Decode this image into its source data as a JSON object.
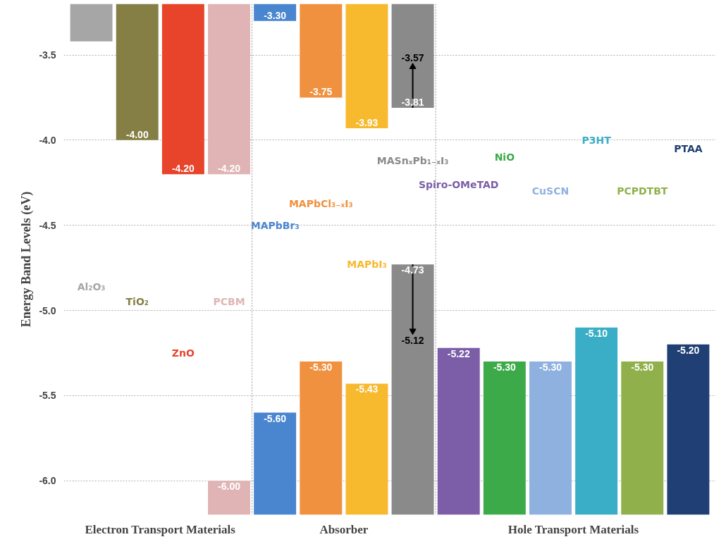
{
  "chart_data": {
    "type": "bar",
    "ylabel": "Energy Band Levels (eV)",
    "categories": [
      "Al₂O₃",
      "TiO₂",
      "ZnO",
      "PCBM",
      "MAPbBr₃",
      "MAPbCl₃₋ₓI₃",
      "MAPbI₃",
      "MASnₓPb₁₋ₓI₃",
      "Spiro-OMeTAD",
      "NiO",
      "CuSCN",
      "P3HT",
      "PCPDTBT",
      "PTAA"
    ],
    "colors": [
      "#a6a6a6",
      "#857f45",
      "#e8432b",
      "#e0b4b4",
      "#4a86d0",
      "#f0913f",
      "#f7b92d",
      "#8a8a8a",
      "#7b5ea7",
      "#3daa4a",
      "#8fb1e0",
      "#3aaec6",
      "#8fb04a",
      "#1f3f75"
    ],
    "series": [
      {
        "colors": [
          "#a6a6a6",
          "#857f45",
          "#e8432b",
          "#e0b4b4",
          "#4a86d0",
          "#f0913f",
          "#f7b92d",
          "#8a8a8a",
          null,
          null,
          null,
          null,
          null,
          null
        ],
        "base": [
          -3.2,
          -3.2,
          -3.2,
          -3.2,
          -3.2,
          -3.2,
          -3.2,
          -3.2,
          null,
          null,
          null,
          null,
          null,
          null
        ],
        "values": [
          -0.22,
          -0.8,
          -1.0,
          -1.0,
          -0.1,
          -0.55,
          -0.73,
          -0.61,
          null,
          null,
          null,
          null,
          null,
          null
        ],
        "errors": [
          null,
          null,
          null,
          null,
          null,
          null,
          null,
          [
            -3.81,
            -3.57
          ],
          null,
          null,
          null,
          null,
          null,
          null
        ],
        "value_labels": [
          null,
          "-4.00",
          "-4.20",
          "-4.20",
          "-3.30",
          "-3.75",
          "-3.93",
          "-3.81",
          null,
          null,
          null,
          null,
          null,
          null
        ]
      },
      {
        "colors": [
          null,
          null,
          null,
          "#e0b4b4",
          "#4a86d0",
          "#f0913f",
          "#f7b92d",
          "#8a8a8a",
          "#7b5ea7",
          "#3daa4a",
          "#8fb1e0",
          "#3aaec6",
          "#8fb04a",
          "#1f3f75"
        ],
        "base": [
          null,
          null,
          null,
          -6.2,
          -6.2,
          -6.2,
          -6.2,
          -6.2,
          -6.2,
          -6.2,
          -6.2,
          -6.2,
          -6.2,
          -6.2
        ],
        "values": [
          null,
          null,
          null,
          0.2,
          0.6,
          0.9,
          0.77,
          1.47,
          0.98,
          0.9,
          0.9,
          1.1,
          0.9,
          1.0
        ],
        "errors": [
          null,
          null,
          null,
          null,
          null,
          null,
          null,
          [
            -5.12,
            -4.73
          ],
          null,
          null,
          null,
          null,
          null,
          null
        ],
        "value_labels": [
          null,
          null,
          null,
          "-6.00",
          "-5.60",
          "-5.30",
          "-5.43",
          "-4.73",
          "-5.22",
          "-5.30",
          "-5.30",
          "-5.10",
          "-5.30",
          "-5.20"
        ]
      }
    ],
    "annotations": [
      "-3.57",
      "-5.12",
      "Electron Transport Materials",
      "Absorber",
      "Hole Transport Materials"
    ],
    "ylim": [
      -6.2,
      -3.2
    ],
    "yticks": [
      {
        "value": -3.5,
        "label": "-3.5"
      },
      {
        "value": -4.0,
        "label": "-4.0"
      },
      {
        "value": -4.5,
        "label": "-4.5"
      },
      {
        "value": -5.0,
        "label": "-5.0"
      },
      {
        "value": -5.5,
        "label": "-5.5"
      },
      {
        "value": -6.0,
        "label": "-6.0"
      }
    ],
    "grid": "y"
  }
}
